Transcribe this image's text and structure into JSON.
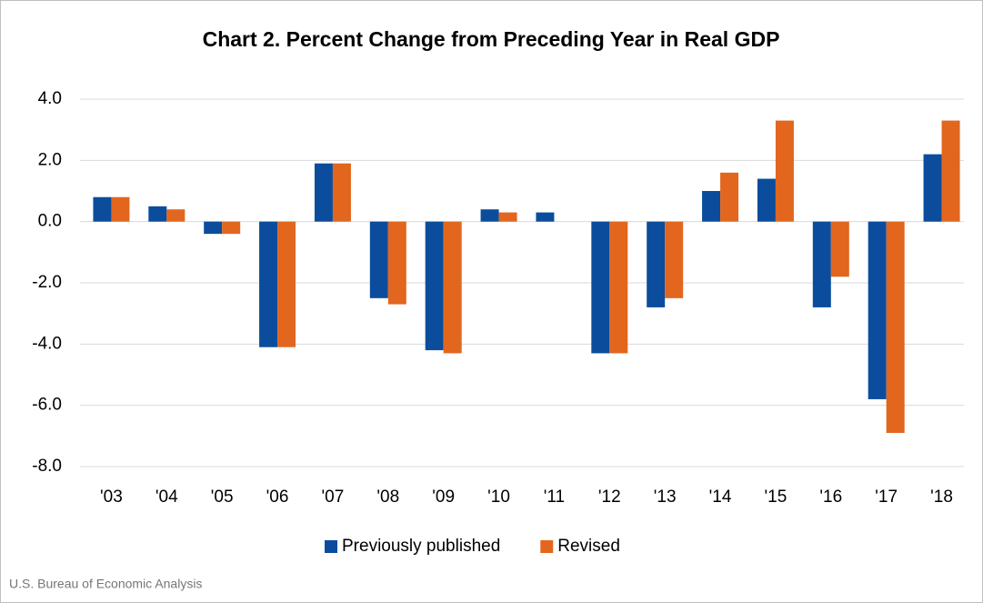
{
  "chart_data": {
    "type": "bar",
    "title": "Chart 2. Percent Change from Preceding Year in Real GDP",
    "categories": [
      "'03",
      "'04",
      "'05",
      "'06",
      "'07",
      "'08",
      "'09",
      "'10",
      "'11",
      "'12",
      "'13",
      "'14",
      "'15",
      "'16",
      "'17",
      "'18"
    ],
    "series": [
      {
        "name": "Previously published",
        "color": "#0b4d9c",
        "values": [
          0.8,
          0.5,
          -0.4,
          -4.1,
          1.9,
          -2.5,
          -4.2,
          0.4,
          0.3,
          -4.3,
          -2.8,
          1.0,
          1.4,
          -2.8,
          -5.8,
          2.2
        ]
      },
      {
        "name": "Revised",
        "color": "#e2661e",
        "values": [
          0.8,
          0.4,
          -0.4,
          -4.1,
          1.9,
          -2.7,
          -4.3,
          0.3,
          0.0,
          -4.3,
          -2.5,
          1.6,
          3.3,
          -1.8,
          -6.9,
          3.3
        ]
      }
    ],
    "ylim": [
      -8,
      4
    ],
    "yticks": [
      {
        "value": -8,
        "label": "-8.0"
      },
      {
        "value": -6,
        "label": "-6.0"
      },
      {
        "value": -4,
        "label": "-4.0"
      },
      {
        "value": -2,
        "label": "-2.0"
      },
      {
        "value": 0,
        "label": "0.0"
      },
      {
        "value": 2,
        "label": "2.0"
      },
      {
        "value": 4,
        "label": "4.0"
      }
    ],
    "grid": true,
    "legend": "bottom",
    "source": "U.S. Bureau of Economic Analysis"
  }
}
